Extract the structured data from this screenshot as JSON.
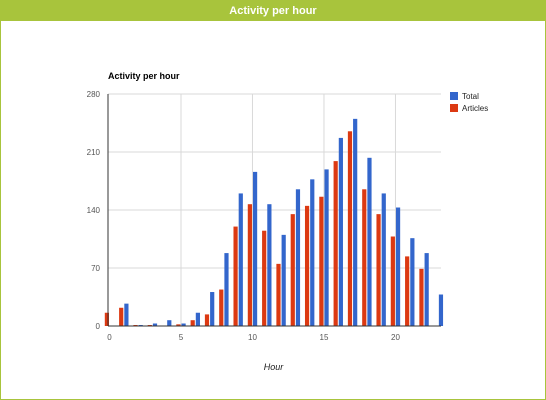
{
  "panel": {
    "title": "Activity per hour"
  },
  "chart_data": {
    "type": "bar",
    "title": "Activity per hour",
    "xlabel": "Hour",
    "ylabel": "",
    "x": [
      0,
      1,
      2,
      3,
      4,
      5,
      6,
      7,
      8,
      9,
      10,
      11,
      12,
      13,
      14,
      15,
      16,
      17,
      18,
      19,
      20,
      21,
      22,
      23
    ],
    "xlim": [
      0,
      23
    ],
    "ylim": [
      0,
      280
    ],
    "xticks": [
      0,
      5,
      10,
      15,
      20
    ],
    "yticks": [
      0,
      70,
      140,
      210,
      280
    ],
    "grid": true,
    "legend_position": "right",
    "series": [
      {
        "name": "Total",
        "color": "#3366cc",
        "values": [
          null,
          27,
          1,
          3,
          7,
          3,
          16,
          41,
          88,
          160,
          186,
          147,
          110,
          165,
          177,
          189,
          227,
          250,
          203,
          160,
          143,
          106,
          88,
          38
        ]
      },
      {
        "name": "Articles",
        "color": "#dc3912",
        "values": [
          16,
          22,
          1,
          1,
          0,
          2,
          7,
          14,
          44,
          120,
          147,
          115,
          75,
          135,
          145,
          156,
          199,
          235,
          165,
          135,
          108,
          84,
          69,
          null
        ]
      }
    ]
  }
}
